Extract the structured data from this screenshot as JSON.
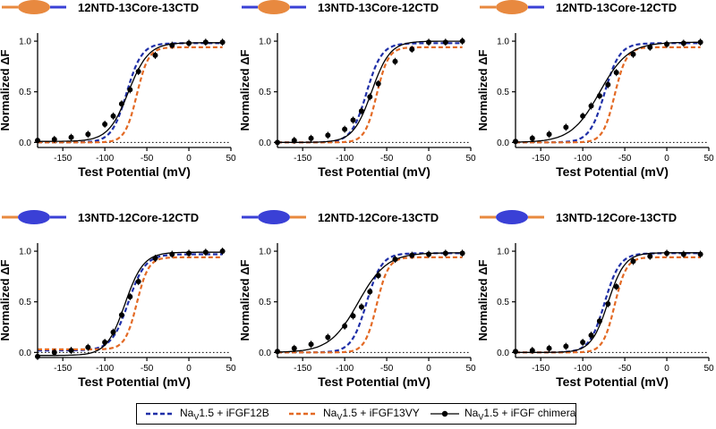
{
  "colors": {
    "iFGF12B": "#1f2fa8",
    "iFGF13VY": "#e36a25",
    "chimera": "#000000",
    "orange_domain": "#e8893f",
    "blue_domain": "#3a40d6"
  },
  "legend": {
    "items": [
      {
        "key": "iFGF12B",
        "prefix": "Na",
        "sub": "V",
        "suffix": "1.5 + iFGF12B"
      },
      {
        "key": "iFGF13VY",
        "prefix": "Na",
        "sub": "V",
        "suffix": "1.5 + iFGF13VY"
      },
      {
        "key": "chimera",
        "prefix": "Na",
        "sub": "V",
        "suffix": "1.5 + iFGF chimera"
      }
    ]
  },
  "chart_data": [
    {
      "type": "line",
      "title": "12NTD-13Core-13CTD",
      "construct": {
        "ntd": "orange",
        "core": "orange",
        "ctd": "blue"
      },
      "xlabel": "Test Potential (mV)",
      "ylabel": "Normalized ΔF",
      "xlim": [
        -180,
        50
      ],
      "ylim": [
        -0.05,
        1.08
      ],
      "xticks": [
        -150,
        -100,
        -50,
        0,
        50
      ],
      "yticks": [
        0.0,
        0.5,
        1.0
      ],
      "reference_fits": [
        {
          "series": "iFGF12B",
          "v_half": -74,
          "slope": 9,
          "bottom": 0.0,
          "top": 0.98
        },
        {
          "series": "iFGF13VY",
          "v_half": -62,
          "slope": 7,
          "bottom": 0.0,
          "top": 0.94
        }
      ],
      "chimera_fit": {
        "v_half": -72,
        "slope": 12,
        "bottom": 0.01,
        "top": 0.985
      },
      "chimera_points": {
        "x": [
          -180,
          -160,
          -140,
          -120,
          -100,
          -90,
          -80,
          -70,
          -60,
          -40,
          -20,
          0,
          20,
          40
        ],
        "y": [
          0.02,
          0.03,
          0.05,
          0.08,
          0.18,
          0.26,
          0.38,
          0.52,
          0.7,
          0.86,
          0.96,
          0.98,
          0.99,
          0.99
        ]
      }
    },
    {
      "type": "line",
      "title": "13NTD-13Core-12CTD",
      "construct": {
        "ntd": "blue",
        "core": "orange",
        "ctd": "blue"
      },
      "xlabel": "Test Potential (mV)",
      "ylabel": "Normalized ΔF",
      "xlim": [
        -180,
        50
      ],
      "ylim": [
        -0.05,
        1.08
      ],
      "xticks": [
        -150,
        -100,
        -50,
        0,
        50
      ],
      "yticks": [
        0.0,
        0.5,
        1.0
      ],
      "reference_fits": [
        {
          "series": "iFGF12B",
          "v_half": -74,
          "slope": 9,
          "bottom": 0.0,
          "top": 0.98
        },
        {
          "series": "iFGF13VY",
          "v_half": -62,
          "slope": 7,
          "bottom": 0.0,
          "top": 0.94
        }
      ],
      "chimera_fit": {
        "v_half": -68,
        "slope": 11,
        "bottom": 0.0,
        "top": 1.0
      },
      "chimera_points": {
        "x": [
          -180,
          -160,
          -140,
          -120,
          -100,
          -90,
          -80,
          -70,
          -60,
          -40,
          -20,
          0,
          20,
          40
        ],
        "y": [
          0.0,
          0.02,
          0.04,
          0.07,
          0.13,
          0.22,
          0.31,
          0.45,
          0.58,
          0.8,
          0.92,
          0.99,
          0.99,
          1.0
        ]
      }
    },
    {
      "type": "line",
      "title": "12NTD-13Core-12CTD",
      "construct": {
        "ntd": "orange",
        "core": "orange",
        "ctd": "blue"
      },
      "xlabel": "Test Potential (mV)",
      "ylabel": "Normalized ΔF",
      "xlim": [
        -180,
        50
      ],
      "ylim": [
        -0.05,
        1.08
      ],
      "xticks": [
        -150,
        -100,
        -50,
        0,
        50
      ],
      "yticks": [
        0.0,
        0.5,
        1.0
      ],
      "reference_fits": [
        {
          "series": "iFGF12B",
          "v_half": -74,
          "slope": 9,
          "bottom": 0.0,
          "top": 0.98
        },
        {
          "series": "iFGF13VY",
          "v_half": -62,
          "slope": 7,
          "bottom": 0.0,
          "top": 0.94
        }
      ],
      "chimera_fit": {
        "v_half": -80,
        "slope": 17,
        "bottom": 0.0,
        "top": 0.99
      },
      "chimera_points": {
        "x": [
          -180,
          -160,
          -140,
          -120,
          -100,
          -90,
          -80,
          -70,
          -60,
          -40,
          -20,
          0,
          20,
          40
        ],
        "y": [
          0.01,
          0.04,
          0.08,
          0.15,
          0.26,
          0.36,
          0.46,
          0.57,
          0.69,
          0.87,
          0.94,
          0.97,
          0.98,
          0.99
        ]
      }
    },
    {
      "type": "line",
      "title": "13NTD-12Core-12CTD",
      "construct": {
        "ntd": "orange",
        "core": "blue",
        "ctd": "blue"
      },
      "xlabel": "Test Potential (mV)",
      "ylabel": "Normalized ΔF",
      "xlim": [
        -180,
        50
      ],
      "ylim": [
        -0.05,
        1.08
      ],
      "xticks": [
        -150,
        -100,
        -50,
        0,
        50
      ],
      "yticks": [
        0.0,
        0.5,
        1.0
      ],
      "reference_fits": [
        {
          "series": "iFGF12B",
          "v_half": -72,
          "slope": 10,
          "bottom": 0.02,
          "top": 0.97
        },
        {
          "series": "iFGF13VY",
          "v_half": -62,
          "slope": 7,
          "bottom": 0.03,
          "top": 0.94
        }
      ],
      "chimera_fit": {
        "v_half": -76,
        "slope": 11,
        "bottom": -0.03,
        "top": 0.99
      },
      "chimera_points": {
        "x": [
          -180,
          -160,
          -140,
          -120,
          -100,
          -90,
          -80,
          -70,
          -60,
          -40,
          -20,
          0,
          20,
          40
        ],
        "y": [
          -0.04,
          0.0,
          0.02,
          0.05,
          0.1,
          0.2,
          0.37,
          0.55,
          0.7,
          0.93,
          0.97,
          0.98,
          0.99,
          1.0
        ]
      }
    },
    {
      "type": "line",
      "title": "12NTD-12Core-13CTD",
      "construct": {
        "ntd": "blue",
        "core": "blue",
        "ctd": "orange"
      },
      "xlabel": "Test Potential (mV)",
      "ylabel": "Normalized ΔF",
      "xlim": [
        -180,
        50
      ],
      "ylim": [
        -0.05,
        1.08
      ],
      "xticks": [
        -150,
        -100,
        -50,
        0,
        50
      ],
      "yticks": [
        0.0,
        0.5,
        1.0
      ],
      "reference_fits": [
        {
          "series": "iFGF12B",
          "v_half": -74,
          "slope": 9,
          "bottom": 0.0,
          "top": 0.98
        },
        {
          "series": "iFGF13VY",
          "v_half": -62,
          "slope": 7,
          "bottom": 0.0,
          "top": 0.94
        }
      ],
      "chimera_fit": {
        "v_half": -84,
        "slope": 17,
        "bottom": 0.0,
        "top": 0.985
      },
      "chimera_points": {
        "x": [
          -180,
          -160,
          -140,
          -120,
          -100,
          -90,
          -80,
          -70,
          -60,
          -40,
          -20,
          0,
          20,
          40
        ],
        "y": [
          0.01,
          0.04,
          0.08,
          0.15,
          0.26,
          0.36,
          0.45,
          0.6,
          0.76,
          0.92,
          0.96,
          0.97,
          0.98,
          0.98
        ]
      }
    },
    {
      "type": "line",
      "title": "13NTD-12Core-13CTD",
      "construct": {
        "ntd": "orange",
        "core": "blue",
        "ctd": "orange"
      },
      "xlabel": "Test Potential (mV)",
      "ylabel": "Normalized ΔF",
      "xlim": [
        -180,
        50
      ],
      "ylim": [
        -0.05,
        1.08
      ],
      "xticks": [
        -150,
        -100,
        -50,
        0,
        50
      ],
      "yticks": [
        0.0,
        0.5,
        1.0
      ],
      "reference_fits": [
        {
          "series": "iFGF12B",
          "v_half": -74,
          "slope": 9,
          "bottom": 0.0,
          "top": 0.98
        },
        {
          "series": "iFGF13VY",
          "v_half": -62,
          "slope": 7,
          "bottom": 0.0,
          "top": 0.94
        }
      ],
      "chimera_fit": {
        "v_half": -70,
        "slope": 10,
        "bottom": 0.0,
        "top": 0.985
      },
      "chimera_points": {
        "x": [
          -180,
          -160,
          -140,
          -120,
          -100,
          -90,
          -80,
          -70,
          -60,
          -40,
          -20,
          0,
          20,
          40
        ],
        "y": [
          0.01,
          0.02,
          0.04,
          0.06,
          0.1,
          0.17,
          0.31,
          0.48,
          0.65,
          0.9,
          0.95,
          0.98,
          0.97,
          0.97
        ]
      }
    }
  ]
}
